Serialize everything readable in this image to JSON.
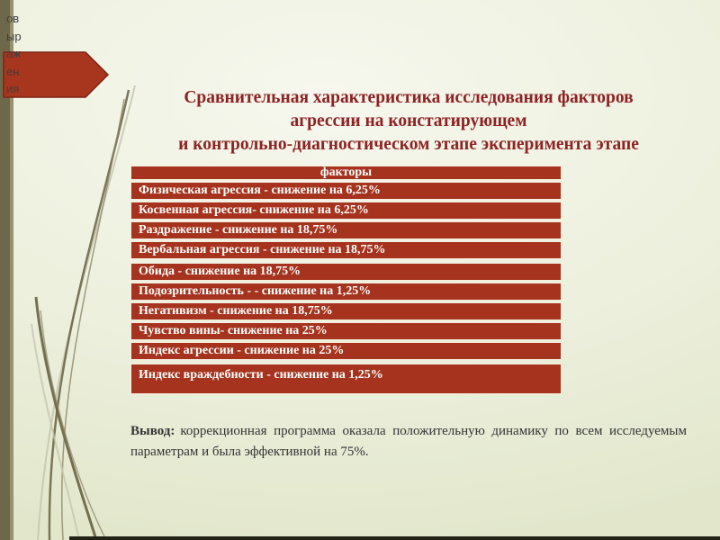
{
  "colors": {
    "bg_light": "#f6f7ee",
    "bg_mid": "#edf0dd",
    "bg_dark": "#e2e7cc",
    "bar_olive": "#6e684a",
    "bar_edge": "#97916f",
    "strip_dark": "#222216",
    "title_red": "#8e2222",
    "table_red": "#a5331d",
    "row_border": "#f6ecdf",
    "arrow_red": "#a8361f",
    "arrow_border": "#7c2413",
    "text_dark": "#333333",
    "grass_dark": "#6e6849",
    "grass_light": "#c6c6ae"
  },
  "clipped_text": "ов\nыр\nаж\nен\nия",
  "title": {
    "line1": "Сравнительная характеристика исследования факторов",
    "line2": "агрессии на констатирующем",
    "line3": "и контрольно-диагностическом этапе эксперимента этапе"
  },
  "table": {
    "header": "факторы",
    "rows": [
      "Физическая агрессия - снижение на 6,25%",
      "Косвенная агрессия- снижение на 6,25%",
      "Раздражение - снижение на 18,75%",
      "Вербальная агрессия - снижение на 18,75%",
      "Обида - снижение на 18,75%",
      "Подозрительность - - снижение на 1,25%",
      "Негативизм - снижение на 18,75%",
      "Чувство вины- снижение на 25%",
      "Индекс агрессии - снижение на 25%",
      "Индекс враждебности - снижение на 1,25%"
    ]
  },
  "conclusion": {
    "label": "Вывод:",
    "text": "коррекционная программа оказала положительную динамику по всем исследуемым параметрам и была эффективной на 75%."
  }
}
